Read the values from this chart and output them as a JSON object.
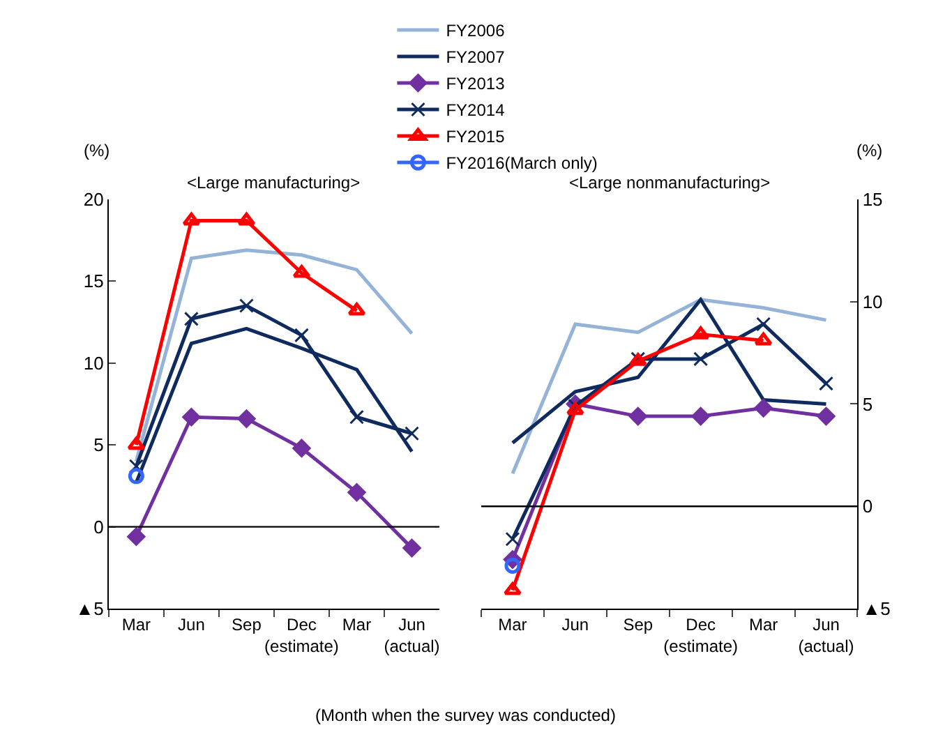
{
  "chart_data": [
    {
      "type": "line",
      "title": "<Large manufacturing>",
      "ylabel": "(%)",
      "categories": [
        "Mar",
        "Jun",
        "Sep",
        "Dec\n(estimate)",
        "Mar",
        "Jun\n(actual)"
      ],
      "ylim": [
        -5,
        20
      ],
      "yticks": [
        {
          "value": -5,
          "label": "▲5"
        },
        0,
        5,
        10,
        15,
        20
      ],
      "legend": "top",
      "marker": "none",
      "ref_lines": [
        {
          "axis": "y",
          "value": 0,
          "color": "#000000"
        }
      ],
      "annotations": [
        "(Month when the survey was conducted)"
      ],
      "series": [
        {
          "name": "FY2006",
          "color": "#95b3d7",
          "values": [
            4.0,
            16.4,
            16.9,
            16.6,
            15.7,
            11.8
          ]
        },
        {
          "name": "FY2007",
          "color": "#0f2a5e",
          "values": [
            2.7,
            11.2,
            12.1,
            10.9,
            9.6,
            4.6
          ]
        },
        {
          "name": "FY2013",
          "color": "#7030a0",
          "marker": "diamond",
          "values": [
            -0.6,
            6.7,
            6.6,
            4.8,
            2.1,
            -1.3
          ]
        },
        {
          "name": "FY2014",
          "color": "#0f2a5e",
          "marker": "cross",
          "values": [
            3.7,
            12.7,
            13.5,
            11.7,
            6.7,
            5.7
          ]
        },
        {
          "name": "FY2015",
          "color": "#ff0000",
          "marker": "triangle",
          "values": [
            5.0,
            18.7,
            18.7,
            15.5,
            13.2,
            null
          ]
        },
        {
          "name": "FY2016(March only)",
          "color": "#3366ff",
          "marker": "circle",
          "values": [
            3.1,
            null,
            null,
            null,
            null,
            null
          ]
        }
      ]
    },
    {
      "type": "line",
      "title": "<Large nonmanufacturing>",
      "ylabel": "(%)",
      "categories": [
        "Mar",
        "Jun",
        "Sep",
        "Dec\n(estimate)",
        "Mar",
        "Jun\n(actual)"
      ],
      "ylim": [
        -5,
        15
      ],
      "yticks": [
        {
          "value": -5,
          "label": "▲5"
        },
        0,
        5,
        10,
        15
      ],
      "marker": "none",
      "ref_lines": [
        {
          "axis": "y",
          "value": 0,
          "color": "#000000"
        }
      ],
      "series": [
        {
          "color": "#95b3d7",
          "values": [
            1.6,
            8.9,
            8.5,
            10.1,
            9.7,
            9.1
          ]
        },
        {
          "color": "#0f2a5e",
          "values": [
            3.1,
            5.6,
            6.3,
            10.1,
            5.2,
            5.0
          ]
        },
        {
          "color": "#7030a0",
          "marker": "diamond",
          "values": [
            -2.6,
            5.0,
            4.4,
            4.4,
            4.8,
            4.4
          ]
        },
        {
          "color": "#0f2a5e",
          "marker": "cross",
          "values": [
            -1.6,
            4.9,
            7.2,
            7.2,
            8.9,
            6.0
          ]
        },
        {
          "color": "#ff0000",
          "marker": "triangle",
          "values": [
            -4.1,
            4.7,
            7.1,
            8.4,
            8.1,
            null
          ]
        },
        {
          "color": "#3366ff",
          "marker": "circle",
          "values": [
            -2.9,
            null,
            null,
            null,
            null,
            null
          ]
        }
      ]
    }
  ]
}
